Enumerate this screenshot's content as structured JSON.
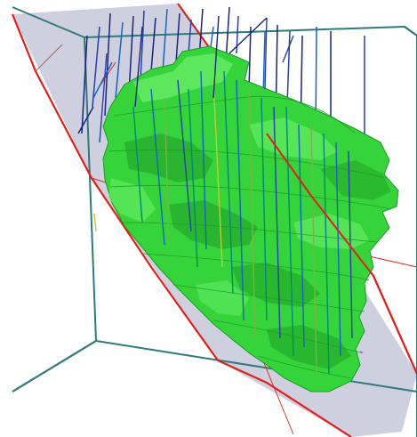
{
  "viewer": {
    "background_color": "#ffffff",
    "bounding_box_color": "#2f7a7a",
    "section_plane_fill": "#c7c8d9",
    "section_outline_color": "#e0201e",
    "orebody_color": "#35d43a",
    "orebody_highlight": "#6ef06c",
    "orebody_shadow": "#1f9a26",
    "drillhole_colors": [
      "#1a237e",
      "#283fae",
      "#1565c0",
      "#00897b",
      "#7cb342",
      "#c0ca33"
    ]
  }
}
